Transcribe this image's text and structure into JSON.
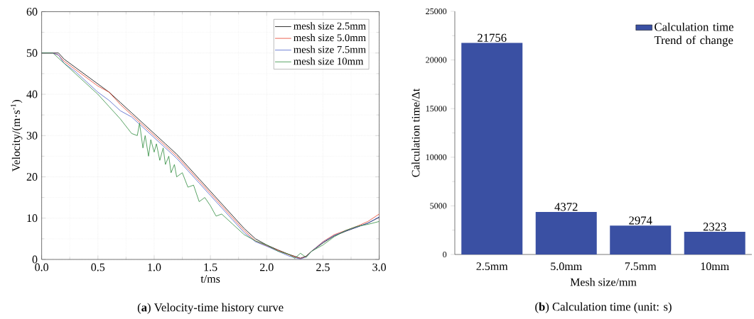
{
  "chart_data": [
    {
      "type": "line",
      "xlabel": "t/ms",
      "ylabel": "Velocity/(m·s$^{-1}$)",
      "xlim": [
        0,
        3
      ],
      "ylim": [
        0,
        60
      ],
      "xticks": [
        {
          "value": 0,
          "label": "0.0"
        },
        {
          "value": 0.5,
          "label": "0.5"
        },
        {
          "value": 1,
          "label": "1.0"
        },
        {
          "value": 1.5,
          "label": "1.5"
        },
        {
          "value": 2,
          "label": "2.0"
        },
        {
          "value": 2.5,
          "label": "2.5"
        },
        {
          "value": 3,
          "label": "3.0"
        }
      ],
      "yticks": [
        0,
        10,
        20,
        30,
        40,
        50,
        60
      ],
      "grid": true,
      "legend": "top right",
      "series": [
        {
          "name": "mesh size 2.5mm",
          "color": "#000000",
          "x": [
            0,
            0.1,
            0.15,
            0.2,
            0.3,
            0.4,
            0.5,
            0.6,
            0.7,
            0.8,
            0.9,
            1.0,
            1.1,
            1.2,
            1.3,
            1.4,
            1.5,
            1.6,
            1.7,
            1.8,
            1.9,
            2.0,
            2.1,
            2.2,
            2.3,
            2.35,
            2.4,
            2.5,
            2.6,
            2.7,
            2.8,
            2.9,
            3.0
          ],
          "values": [
            50,
            50,
            50,
            48.5,
            46.5,
            44.5,
            42.5,
            40.5,
            38,
            35.5,
            33,
            30.5,
            28,
            25.5,
            22.5,
            19.5,
            16.5,
            13.5,
            10.5,
            7.5,
            5,
            3.5,
            2.3,
            1.2,
            0.3,
            0.8,
            2,
            4,
            5.7,
            6.8,
            7.8,
            8.8,
            10.2
          ]
        },
        {
          "name": "mesh size 5.0mm",
          "color": "#e8402a",
          "x": [
            0,
            0.1,
            0.15,
            0.2,
            0.3,
            0.4,
            0.5,
            0.6,
            0.7,
            0.8,
            0.9,
            1.0,
            1.1,
            1.2,
            1.3,
            1.4,
            1.5,
            1.6,
            1.7,
            1.8,
            1.9,
            2.0,
            2.1,
            2.2,
            2.3,
            2.35,
            2.4,
            2.5,
            2.6,
            2.7,
            2.8,
            2.9,
            3.0
          ],
          "values": [
            50,
            50,
            49.5,
            48,
            46,
            44,
            42,
            40.5,
            37.5,
            35,
            32.5,
            30,
            27.5,
            25,
            22,
            19,
            16,
            13,
            10,
            7,
            4.5,
            3.3,
            2.2,
            1.1,
            0.2,
            0.7,
            2,
            4.3,
            6,
            7,
            8,
            9.2,
            11
          ]
        },
        {
          "name": "mesh size 7.5mm",
          "color": "#4a5fc8",
          "x": [
            0,
            0.1,
            0.15,
            0.2,
            0.3,
            0.4,
            0.5,
            0.6,
            0.7,
            0.8,
            0.9,
            1.0,
            1.1,
            1.2,
            1.3,
            1.4,
            1.5,
            1.6,
            1.7,
            1.8,
            1.9,
            2.0,
            2.1,
            2.2,
            2.3,
            2.35,
            2.4,
            2.5,
            2.6,
            2.7,
            2.8,
            2.9,
            3.0
          ],
          "values": [
            50,
            50,
            49.5,
            47.5,
            45.5,
            43,
            40.5,
            38.5,
            36,
            34.5,
            32,
            29.5,
            27,
            24.5,
            21.5,
            18.5,
            15.5,
            12.5,
            9.5,
            6.5,
            4.3,
            3.2,
            2,
            0.8,
            0.1,
            0.6,
            2,
            4.2,
            5.8,
            6.9,
            7.8,
            8.8,
            10.3
          ]
        },
        {
          "name": "mesh size 10mm",
          "color": "#2e8b3e",
          "x": [
            0,
            0.1,
            0.2,
            0.3,
            0.4,
            0.5,
            0.6,
            0.7,
            0.8,
            0.85,
            0.87,
            0.9,
            0.92,
            0.95,
            0.97,
            1.0,
            1.02,
            1.05,
            1.08,
            1.1,
            1.13,
            1.15,
            1.18,
            1.2,
            1.25,
            1.3,
            1.35,
            1.4,
            1.45,
            1.5,
            1.55,
            1.6,
            1.7,
            1.8,
            1.9,
            2.0,
            2.1,
            2.2,
            2.25,
            2.3,
            2.35,
            2.4,
            2.5,
            2.6,
            2.7,
            2.8,
            2.9,
            3.0
          ],
          "values": [
            50,
            50,
            47.5,
            45,
            42.5,
            40,
            37,
            34,
            30.5,
            30,
            33,
            27,
            30,
            25,
            29,
            26,
            28,
            24,
            27,
            23,
            25,
            21,
            23,
            20,
            21,
            17.5,
            18,
            14,
            15,
            13,
            10.5,
            11,
            8.5,
            6,
            4.5,
            3.5,
            2,
            1.2,
            0.3,
            1.5,
            0.5,
            2,
            3.5,
            5.5,
            7,
            8,
            8.5,
            9.2
          ]
        }
      ],
      "annotations": [
        "(**a**) Velocity-time history curve"
      ]
    },
    {
      "type": "bar",
      "xlabel": "Mesh size/mm",
      "ylabel": "Calculation time/Δt",
      "categories": [
        "2.5mm",
        "5.0mm",
        "7.5mm",
        "10mm"
      ],
      "ylim": [
        0,
        25000
      ],
      "yticks": [
        0,
        5000,
        10000,
        15000,
        20000,
        25000
      ],
      "legend": "top right",
      "data_labels": true,
      "series": [
        {
          "name": "Calculation time Trend of change",
          "color": "#3a50a3",
          "values": [
            21756,
            4372,
            2974,
            2323
          ]
        }
      ],
      "annotations": [
        "(**b**) Calculation time (unit: s)"
      ]
    }
  ]
}
